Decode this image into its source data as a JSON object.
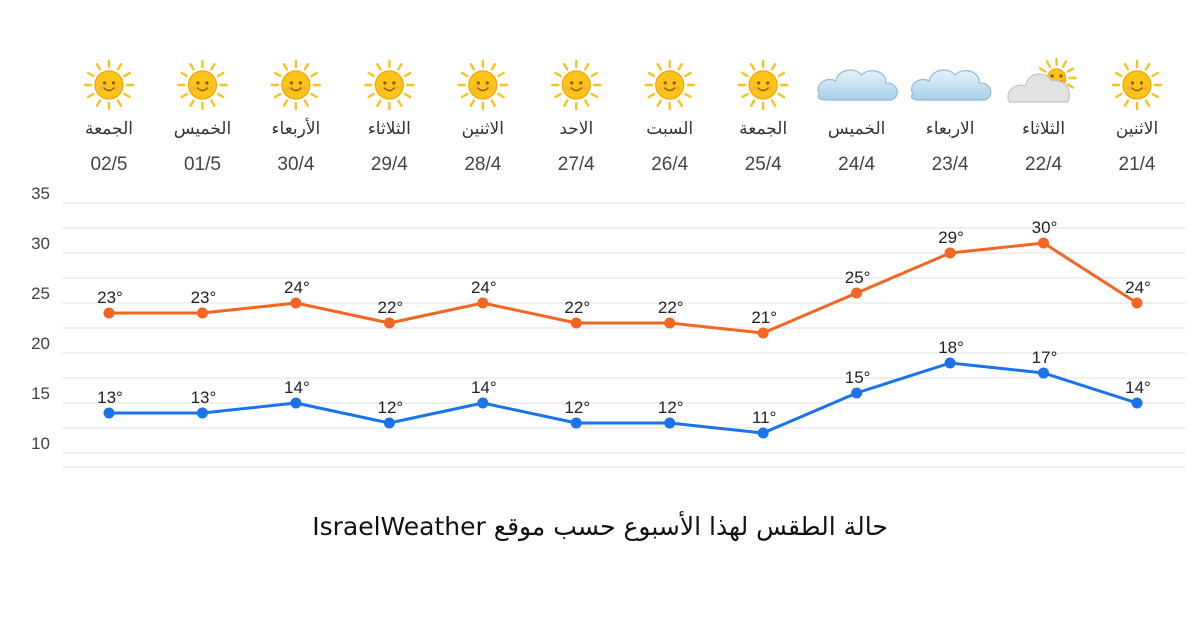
{
  "caption": "حالة الطقس لهذا الأسبوع حسب موقع IsraelWeather",
  "chart_data": {
    "type": "line",
    "days": [
      "الجمعة",
      "الخميس",
      "الأربعاء",
      "الثلاثاء",
      "الاثنين",
      "الاحد",
      "السبت",
      "الجمعة",
      "الخميس",
      "الاربعاء",
      "الثلاثاء",
      "الاثنين"
    ],
    "categories": [
      "02/5",
      "01/5",
      "30/4",
      "29/4",
      "28/4",
      "27/4",
      "26/4",
      "25/4",
      "24/4",
      "23/4",
      "22/4",
      "21/4"
    ],
    "weather_icons": [
      "sun-icon",
      "sun-icon",
      "sun-icon",
      "sun-icon",
      "sun-icon",
      "sun-icon",
      "sun-icon",
      "sun-icon",
      "cloud-icon",
      "cloud-icon",
      "partly-cloudy-icon",
      "sun-icon"
    ],
    "series": [
      {
        "values": [
          23,
          23,
          24,
          22,
          24,
          22,
          22,
          21,
          25,
          29,
          30,
          24
        ],
        "labels": [
          "23°",
          "23°",
          "24°",
          "22°",
          "24°",
          "22°",
          "22°",
          "21°",
          "25°",
          "29°",
          "30°",
          "24°"
        ],
        "color": "#f26522"
      },
      {
        "values": [
          13,
          13,
          14,
          12,
          14,
          12,
          12,
          11,
          15,
          18,
          17,
          14
        ],
        "labels": [
          "13°",
          "13°",
          "14°",
          "12°",
          "14°",
          "12°",
          "12°",
          "11°",
          "15°",
          "18°",
          "17°",
          "14°"
        ],
        "color": "#1a73e8"
      }
    ],
    "yticks": [
      10,
      15,
      20,
      25,
      30,
      35
    ],
    "ylim": [
      8,
      37
    ],
    "grid": true,
    "legend": "none"
  }
}
